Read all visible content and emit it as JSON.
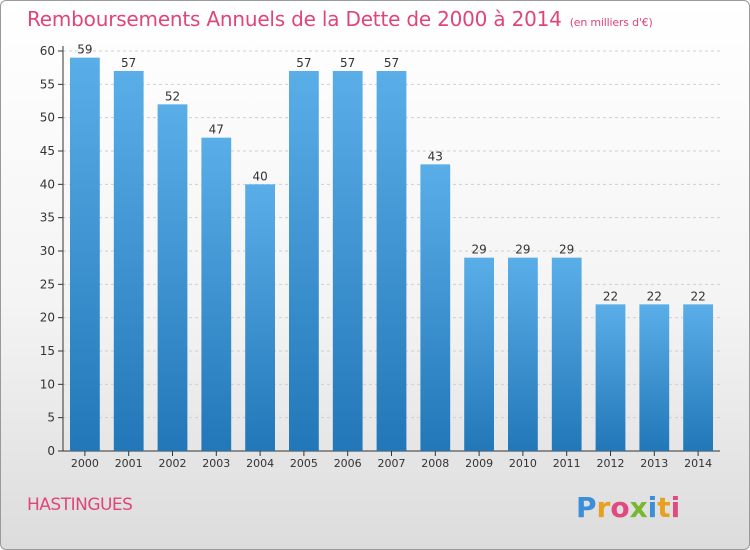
{
  "title": "Remboursements Annuels de la Dette de 2000 à 2014",
  "unit": "(en milliers d'€)",
  "commune": "HASTINGUES",
  "logo": {
    "text": "Proxiti"
  },
  "colors": {
    "title": "#e0457a",
    "bar_top": "#5aaee8",
    "bar_bottom": "#2277b8",
    "axis": "#333333",
    "grid": "#cfcfcf"
  },
  "chart_data": {
    "type": "bar",
    "categories": [
      "2000",
      "2001",
      "2002",
      "2003",
      "2004",
      "2005",
      "2006",
      "2007",
      "2008",
      "2009",
      "2010",
      "2011",
      "2012",
      "2013",
      "2014"
    ],
    "values": [
      59,
      57,
      52,
      47,
      40,
      57,
      57,
      57,
      43,
      29,
      29,
      29,
      22,
      22,
      22
    ],
    "ylim": [
      0,
      60
    ],
    "yticks": [
      0,
      5,
      10,
      15,
      20,
      25,
      30,
      35,
      40,
      45,
      50,
      55,
      60
    ],
    "grid": true,
    "data_labels": true
  }
}
